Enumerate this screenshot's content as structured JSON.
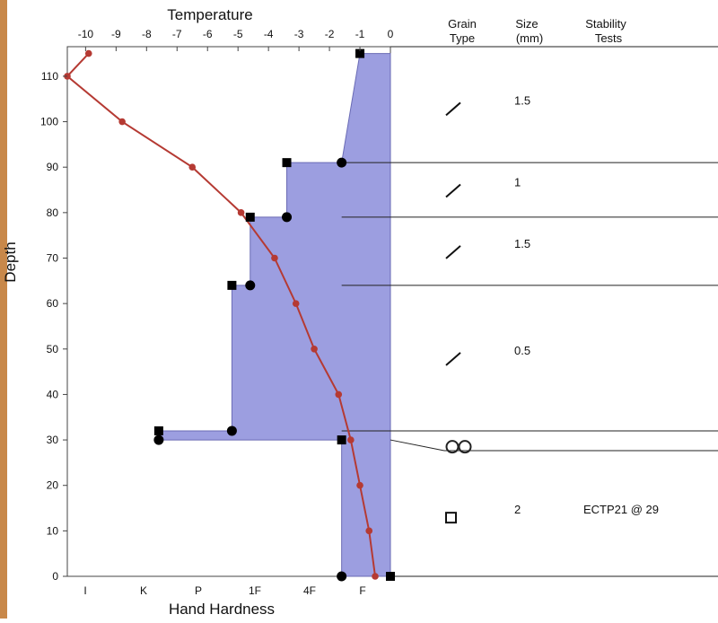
{
  "chart_data": {
    "type": "snow-profile",
    "temperature_axis": {
      "title": "Temperature",
      "ticks": [
        -10,
        -9,
        -8,
        -7,
        -6,
        -5,
        -4,
        -3,
        -2,
        -1,
        0
      ],
      "range": [
        -10.6,
        0
      ]
    },
    "depth_axis": {
      "title": "Depth",
      "ticks": [
        0,
        10,
        20,
        30,
        40,
        50,
        60,
        70,
        80,
        90,
        100,
        110
      ],
      "range": [
        0,
        116.5
      ]
    },
    "hardness_axis": {
      "title": "Hand Hardness",
      "ticks": [
        "I",
        "K",
        "P",
        "1F",
        "4F",
        "F"
      ]
    },
    "temperature_profile": [
      {
        "depth": 115,
        "temp": -9.9
      },
      {
        "depth": 110,
        "temp": -10.6
      },
      {
        "depth": 100,
        "temp": -8.8
      },
      {
        "depth": 90,
        "temp": -6.5
      },
      {
        "depth": 80,
        "temp": -4.9
      },
      {
        "depth": 70,
        "temp": -3.8
      },
      {
        "depth": 60,
        "temp": -3.1
      },
      {
        "depth": 50,
        "temp": -2.5
      },
      {
        "depth": 40,
        "temp": -1.7
      },
      {
        "depth": 30,
        "temp": -1.3
      },
      {
        "depth": 20,
        "temp": -1.0
      },
      {
        "depth": 10,
        "temp": -0.7
      },
      {
        "depth": 0,
        "temp": -0.5
      }
    ],
    "hardness_profile": [
      {
        "top": 115,
        "bottom": 91,
        "hardness_top": -1.0,
        "hardness_bottom": -1.6
      },
      {
        "top": 91,
        "bottom": 79,
        "hardness_top": -3.4,
        "hardness_bottom": -3.4
      },
      {
        "top": 79,
        "bottom": 64,
        "hardness_top": -4.6,
        "hardness_bottom": -4.6
      },
      {
        "top": 64,
        "bottom": 32,
        "hardness_top": -5.2,
        "hardness_bottom": -5.2
      },
      {
        "top": 32,
        "bottom": 30,
        "hardness_top": -7.6,
        "hardness_bottom": -7.6
      },
      {
        "top": 30,
        "bottom": 0,
        "hardness_top": -1.6,
        "hardness_bottom": -1.6
      }
    ],
    "layer_boundaries": [
      91,
      79,
      64,
      32
    ],
    "grain_table": {
      "header_grain": [
        "Grain",
        "Type"
      ],
      "header_size": [
        "Size",
        "(mm)"
      ],
      "header_stability": [
        "Stability",
        "Tests"
      ],
      "rows": [
        {
          "grain_icon": "slash-icon",
          "center": 103,
          "size": "1.5",
          "stability": ""
        },
        {
          "grain_icon": "slash-icon",
          "center": 85,
          "size": "1",
          "stability": ""
        },
        {
          "grain_icon": "slash-icon",
          "center": 71.5,
          "size": "1.5",
          "stability": ""
        },
        {
          "grain_icon": "slash-icon",
          "center": 48,
          "size": "0.5",
          "stability": ""
        },
        {
          "grain_icon": "double-circle-icon",
          "center": 28.5,
          "size": "",
          "stability": ""
        },
        {
          "grain_icon": "square-icon",
          "center": 13,
          "size": "2",
          "stability": "ECTP21 @ 29"
        }
      ]
    }
  },
  "colors": {
    "frame": "#c8884a",
    "temperature": "#b53a33",
    "hardness_fill": "#9c9ee0",
    "hardness_stroke": "#6a6bb5"
  }
}
